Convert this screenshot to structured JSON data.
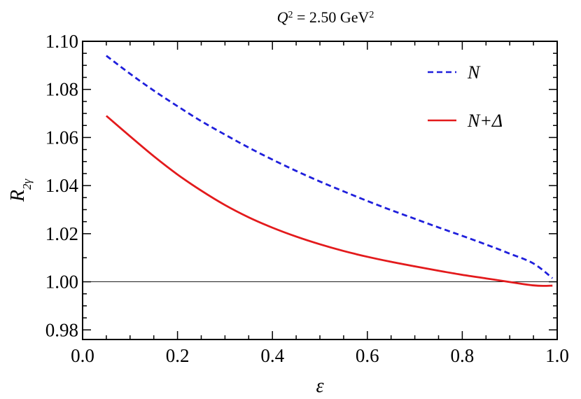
{
  "chart_data": {
    "type": "line",
    "title": {
      "prefix": "Q",
      "prefix_sup": "2",
      "middle": " = 2.50 GeV",
      "unit_sup": "2"
    },
    "xlabel": "ε",
    "ylabel": {
      "main": "R",
      "sub": "2γ"
    },
    "xlim": [
      0.0,
      1.0
    ],
    "ylim": [
      0.976,
      1.1
    ],
    "x_ticks": [
      0.0,
      0.2,
      0.4,
      0.6,
      0.8,
      1.0
    ],
    "x_tick_labels": [
      "0.0",
      "0.2",
      "0.4",
      "0.6",
      "0.8",
      "1.0"
    ],
    "y_ticks": [
      0.98,
      1.0,
      1.02,
      1.04,
      1.06,
      1.08,
      1.1
    ],
    "y_tick_labels": [
      "0.98",
      "1.00",
      "1.02",
      "1.04",
      "1.06",
      "1.08",
      "1.10"
    ],
    "reference_line": 1.0,
    "grid": false,
    "legend_position": "top-right",
    "series": [
      {
        "name": "N",
        "color": "#1f1fdc",
        "style": "dashed",
        "x": [
          0.05,
          0.1,
          0.15,
          0.2,
          0.25,
          0.3,
          0.35,
          0.4,
          0.45,
          0.5,
          0.55,
          0.6,
          0.65,
          0.7,
          0.75,
          0.8,
          0.85,
          0.9,
          0.95,
          0.99
        ],
        "y": [
          1.094,
          1.0865,
          1.0795,
          1.073,
          1.0668,
          1.0612,
          1.0558,
          1.0508,
          1.0461,
          1.0417,
          1.0376,
          1.0336,
          1.0298,
          1.0262,
          1.0226,
          1.0191,
          1.0155,
          1.0117,
          1.0076,
          1.0015
        ]
      },
      {
        "name": "N+Δ",
        "color": "#e31a1c",
        "style": "solid",
        "x": [
          0.05,
          0.1,
          0.15,
          0.2,
          0.25,
          0.3,
          0.35,
          0.4,
          0.45,
          0.5,
          0.55,
          0.6,
          0.65,
          0.7,
          0.75,
          0.8,
          0.85,
          0.9,
          0.93,
          0.95,
          0.97,
          0.99
        ],
        "y": [
          1.069,
          1.0605,
          1.0522,
          1.0446,
          1.0379,
          1.0319,
          1.0268,
          1.0225,
          1.0188,
          1.0156,
          1.0128,
          1.0104,
          1.0083,
          1.0064,
          1.0046,
          1.0029,
          1.0014,
          0.9999,
          0.999,
          0.9985,
          0.9983,
          0.9984
        ]
      }
    ]
  }
}
